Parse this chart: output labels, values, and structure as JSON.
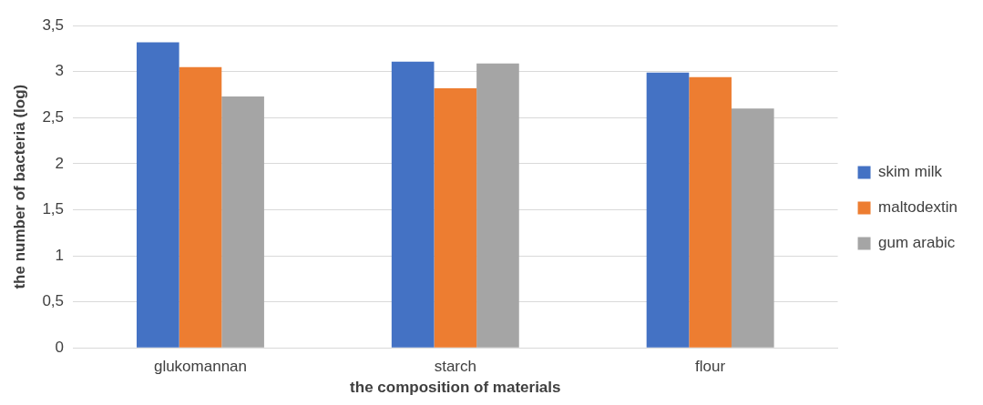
{
  "chart_data": {
    "type": "bar",
    "xlabel": "the composition of materials",
    "ylabel": "the number of bacteria (log)",
    "categories": [
      "glukomannan",
      "starch",
      "flour"
    ],
    "series": [
      {
        "name": "skim milk",
        "color": "#4472c4",
        "values": [
          3.32,
          3.11,
          2.99
        ]
      },
      {
        "name": "maltodextin",
        "color": "#ed7d31",
        "values": [
          3.05,
          2.82,
          2.94
        ]
      },
      {
        "name": "gum arabic",
        "color": "#a5a5a5",
        "values": [
          2.73,
          3.09,
          2.6
        ]
      }
    ],
    "ylim": [
      0,
      3.5
    ],
    "yticks": [
      0,
      {
        "value": 0.5,
        "label": "0,5"
      },
      1,
      {
        "value": 1.5,
        "label": "1,5"
      },
      2,
      {
        "value": 2.5,
        "label": "2,5"
      },
      3,
      {
        "value": 3.5,
        "label": "3,5"
      }
    ],
    "grid": "y",
    "legend": "right"
  }
}
